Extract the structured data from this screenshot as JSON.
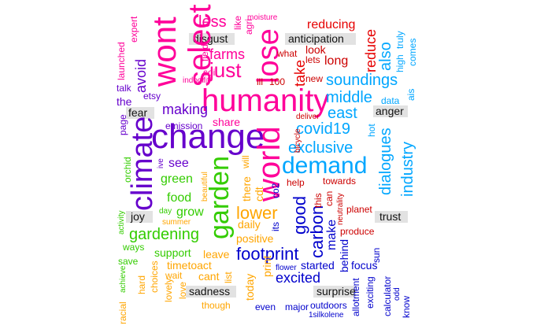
{
  "colors": {
    "emotion_label": "#111111",
    "emotion_box": "#e2e2e2"
  },
  "emotions": [
    {
      "text": "disgust"
    },
    {
      "text": "anticipation"
    },
    {
      "text": "fear"
    },
    {
      "text": "anger"
    },
    {
      "text": "joy"
    },
    {
      "text": "trust"
    },
    {
      "text": "sadness"
    },
    {
      "text": "surprise"
    }
  ],
  "words": [
    {
      "text": "wont",
      "color": "#ff0099"
    },
    {
      "text": "select",
      "color": "#ff0099"
    },
    {
      "text": "lose",
      "color": "#ff0099"
    },
    {
      "text": "humanity",
      "color": "#ff0099"
    },
    {
      "text": "change",
      "color": "#6600cc"
    },
    {
      "text": "climate",
      "color": "#6600cc"
    },
    {
      "text": "world",
      "color": "#ff0099"
    },
    {
      "text": "garden",
      "color": "#33cc00"
    },
    {
      "text": "demand",
      "color": "#00a6ff"
    },
    {
      "text": "just",
      "color": "#ff0099"
    },
    {
      "text": "farms",
      "color": "#ff0099"
    },
    {
      "text": "less",
      "color": "#ff0099"
    },
    {
      "text": "soundings",
      "color": "#00a6ff"
    },
    {
      "text": "middle",
      "color": "#00a6ff"
    },
    {
      "text": "east",
      "color": "#00a6ff"
    },
    {
      "text": "covid19",
      "color": "#00a6ff"
    },
    {
      "text": "exclusive",
      "color": "#00a6ff"
    },
    {
      "text": "making",
      "color": "#6600cc"
    },
    {
      "text": "avoid",
      "color": "#6600cc"
    },
    {
      "text": "the",
      "color": "#6600cc"
    },
    {
      "text": "lower",
      "color": "#ffa500"
    },
    {
      "text": "good",
      "color": "#0000cc"
    },
    {
      "text": "carbon",
      "color": "#0000cc"
    },
    {
      "text": "gardening",
      "color": "#33cc00"
    },
    {
      "text": "footprint",
      "color": "#0000cc"
    },
    {
      "text": "excited",
      "color": "#0000cc"
    },
    {
      "text": "industry",
      "color": "#00a6ff"
    },
    {
      "text": "dialogues",
      "color": "#00a6ff"
    },
    {
      "text": "also",
      "color": "#00a6ff"
    },
    {
      "text": "reduce",
      "color": "#e60000"
    },
    {
      "text": "reducing",
      "color": "#e60000"
    },
    {
      "text": "take",
      "color": "#e60000"
    },
    {
      "text": "look",
      "color": "#cc0000"
    },
    {
      "text": "long",
      "color": "#cc0000"
    },
    {
      "text": "lets",
      "color": "#cc0000"
    },
    {
      "text": "new",
      "color": "#cc0000"
    },
    {
      "text": "what",
      "color": "#cc0000"
    },
    {
      "text": "ill",
      "color": "#cc0000"
    },
    {
      "text": "100",
      "color": "#cc0000"
    },
    {
      "text": "green",
      "color": "#33cc00"
    },
    {
      "text": "see",
      "color": "#6600cc"
    },
    {
      "text": "share",
      "color": "#ff0099"
    },
    {
      "text": "food",
      "color": "#33cc00"
    },
    {
      "text": "grow",
      "color": "#33cc00"
    },
    {
      "text": "support",
      "color": "#33cc00"
    },
    {
      "text": "timetoact",
      "color": "#ffa500"
    },
    {
      "text": "daily",
      "color": "#ffa500"
    },
    {
      "text": "positive",
      "color": "#ffa500"
    },
    {
      "text": "leave",
      "color": "#ffa500"
    },
    {
      "text": "cant",
      "color": "#ffa500"
    },
    {
      "text": "make",
      "color": "#0000cc"
    },
    {
      "text": "focus",
      "color": "#0000cc"
    },
    {
      "text": "started",
      "color": "#0000cc"
    },
    {
      "text": "behind",
      "color": "#0000cc"
    },
    {
      "text": "expert",
      "color": "#ff0099"
    },
    {
      "text": "launched",
      "color": "#ff0099"
    },
    {
      "text": "field",
      "color": "#ff0099"
    },
    {
      "text": "soil",
      "color": "#ff0099"
    },
    {
      "text": "like",
      "color": "#ff0099"
    },
    {
      "text": "agri",
      "color": "#ff0099"
    },
    {
      "text": "moisture",
      "color": "#ff0099"
    },
    {
      "text": "indoor",
      "color": "#ff0099"
    },
    {
      "text": "fit",
      "color": "#ff0099"
    },
    {
      "text": "etsy",
      "color": "#6600cc"
    },
    {
      "text": "talk",
      "color": "#6600cc"
    },
    {
      "text": "page",
      "color": "#6600cc"
    },
    {
      "text": "emission",
      "color": "#6600cc"
    },
    {
      "text": "orchid",
      "color": "#33cc00"
    },
    {
      "text": "ive",
      "color": "#6600cc"
    },
    {
      "text": "beautiful",
      "color": "#ffa500"
    },
    {
      "text": "day",
      "color": "#33cc00"
    },
    {
      "text": "summer",
      "color": "#ffa500"
    },
    {
      "text": "activity",
      "color": "#33cc00"
    },
    {
      "text": "ways",
      "color": "#33cc00"
    },
    {
      "text": "save",
      "color": "#33cc00"
    },
    {
      "text": "achieve",
      "color": "#33cc00"
    },
    {
      "text": "hard",
      "color": "#ffa500"
    },
    {
      "text": "choices",
      "color": "#ffa500"
    },
    {
      "text": "lovely",
      "color": "#ffa500"
    },
    {
      "text": "racial",
      "color": "#ffa500"
    },
    {
      "text": "love",
      "color": "#ffa500"
    },
    {
      "text": "wait",
      "color": "#ffa500"
    },
    {
      "text": "list",
      "color": "#ffa500"
    },
    {
      "text": "though",
      "color": "#ffa500"
    },
    {
      "text": "today",
      "color": "#ffa500"
    },
    {
      "text": "print",
      "color": "#ffa500"
    },
    {
      "text": "there",
      "color": "#ffa500"
    },
    {
      "text": "cdt",
      "color": "#ffa500"
    },
    {
      "text": "will",
      "color": "#ffa500"
    },
    {
      "text": "its",
      "color": "#0000cc"
    },
    {
      "text": "even",
      "color": "#0000cc"
    },
    {
      "text": "major",
      "color": "#0000cc"
    },
    {
      "text": "1silkolene",
      "color": "#0000cc"
    },
    {
      "text": "flower",
      "color": "#0000cc"
    },
    {
      "text": "outdoors",
      "color": "#0000cc"
    },
    {
      "text": "allotment",
      "color": "#0000cc"
    },
    {
      "text": "exciting",
      "color": "#0000cc"
    },
    {
      "text": "calculator",
      "color": "#0000cc"
    },
    {
      "text": "odd",
      "color": "#0000cc"
    },
    {
      "text": "know",
      "color": "#0000cc"
    },
    {
      "text": "sun",
      "color": "#0000cc"
    },
    {
      "text": "co2",
      "color": "#0000cc"
    },
    {
      "text": "help",
      "color": "#cc0000"
    },
    {
      "text": "towards",
      "color": "#cc0000"
    },
    {
      "text": "this",
      "color": "#cc0000"
    },
    {
      "text": "can",
      "color": "#cc0000"
    },
    {
      "text": "neutrality",
      "color": "#cc0000"
    },
    {
      "text": "planet",
      "color": "#cc0000"
    },
    {
      "text": "produce",
      "color": "#cc0000"
    },
    {
      "text": "bicycle",
      "color": "#cc0000"
    },
    {
      "text": "deliver",
      "color": "#cc0000"
    },
    {
      "text": "hot",
      "color": "#00a6ff"
    },
    {
      "text": "data",
      "color": "#00a6ff"
    },
    {
      "text": "ais",
      "color": "#00a6ff"
    },
    {
      "text": "comes",
      "color": "#00a6ff"
    },
    {
      "text": "truly",
      "color": "#00a6ff"
    },
    {
      "text": "high",
      "color": "#00a6ff"
    }
  ]
}
